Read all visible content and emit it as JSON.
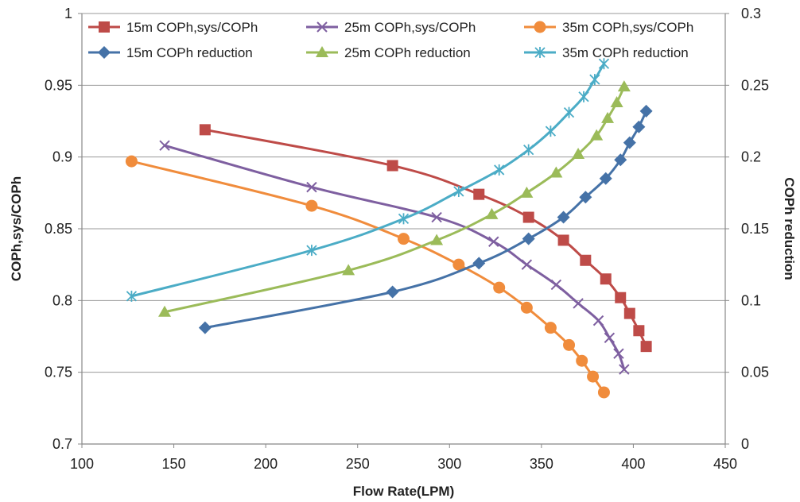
{
  "chart_data": {
    "type": "line",
    "xlabel": "Flow Rate(LPM)",
    "ylabel": "COPh,sys/COPh",
    "y2label": "COPh reduction",
    "xlim": [
      100,
      450
    ],
    "ylim": [
      0.7,
      1.0
    ],
    "y2lim": [
      0,
      0.3
    ],
    "x_ticks": [
      100,
      150,
      200,
      250,
      300,
      350,
      400,
      450
    ],
    "y_ticks": [
      0.7,
      0.75,
      0.8,
      0.85,
      0.9,
      0.95,
      1
    ],
    "y2_ticks": [
      0,
      0.05,
      0.1,
      0.15,
      0.2,
      0.25,
      0.3
    ],
    "y_tick_labels": [
      "0.7",
      "0.75",
      "0.8",
      "0.85",
      "0.9",
      "0.95",
      "1"
    ],
    "y2_tick_labels": [
      "0",
      "0.05",
      "0.1",
      "0.15",
      "0.2",
      "0.25",
      "0.3"
    ],
    "x_tick_labels": [
      "100",
      "150",
      "200",
      "250",
      "300",
      "350",
      "400",
      "450"
    ],
    "grid": "horizontal",
    "legend_position": "top",
    "series": [
      {
        "name": "15m COPh,sys/COPh",
        "axis": "left",
        "color": "#BE4B48",
        "marker": "square",
        "x": [
          167,
          269,
          316,
          343,
          362,
          374,
          385,
          393,
          398,
          403,
          407
        ],
        "y": [
          0.919,
          0.894,
          0.874,
          0.858,
          0.842,
          0.828,
          0.815,
          0.802,
          0.791,
          0.779,
          0.768
        ]
      },
      {
        "name": "25m COPh,sys/COPh",
        "axis": "left",
        "color": "#7E5FA0",
        "marker": "x",
        "x": [
          145,
          225,
          293,
          324,
          342,
          358,
          370,
          381,
          387,
          392,
          395
        ],
        "y": [
          0.908,
          0.879,
          0.858,
          0.841,
          0.825,
          0.811,
          0.798,
          0.786,
          0.774,
          0.763,
          0.752
        ]
      },
      {
        "name": "35m COPh,sys/COPh",
        "axis": "left",
        "color": "#F08C3C",
        "marker": "circle",
        "x": [
          127,
          225,
          275,
          305,
          327,
          342,
          355,
          365,
          372,
          378,
          384
        ],
        "y": [
          0.897,
          0.866,
          0.843,
          0.825,
          0.809,
          0.795,
          0.781,
          0.769,
          0.758,
          0.747,
          0.736
        ]
      },
      {
        "name": "15m COPh reduction",
        "axis": "right",
        "color": "#4572A7",
        "marker": "diamond",
        "x": [
          167,
          269,
          316,
          343,
          362,
          374,
          385,
          393,
          398,
          403,
          407
        ],
        "y": [
          0.081,
          0.106,
          0.126,
          0.143,
          0.158,
          0.172,
          0.185,
          0.198,
          0.21,
          0.221,
          0.232
        ]
      },
      {
        "name": "25m COPh reduction",
        "axis": "right",
        "color": "#9BBB59",
        "marker": "triangle",
        "x": [
          145,
          245,
          293,
          323,
          342,
          358,
          370,
          380,
          386,
          391,
          395
        ],
        "y": [
          0.092,
          0.121,
          0.142,
          0.16,
          0.175,
          0.189,
          0.202,
          0.215,
          0.227,
          0.238,
          0.249
        ]
      },
      {
        "name": "35m COPh reduction",
        "axis": "right",
        "color": "#4BACC6",
        "marker": "asterisk",
        "x": [
          127,
          225,
          275,
          305,
          327,
          343,
          355,
          365,
          373,
          379,
          384
        ],
        "y": [
          0.103,
          0.135,
          0.157,
          0.176,
          0.191,
          0.205,
          0.218,
          0.231,
          0.242,
          0.254,
          0.265
        ]
      }
    ]
  }
}
